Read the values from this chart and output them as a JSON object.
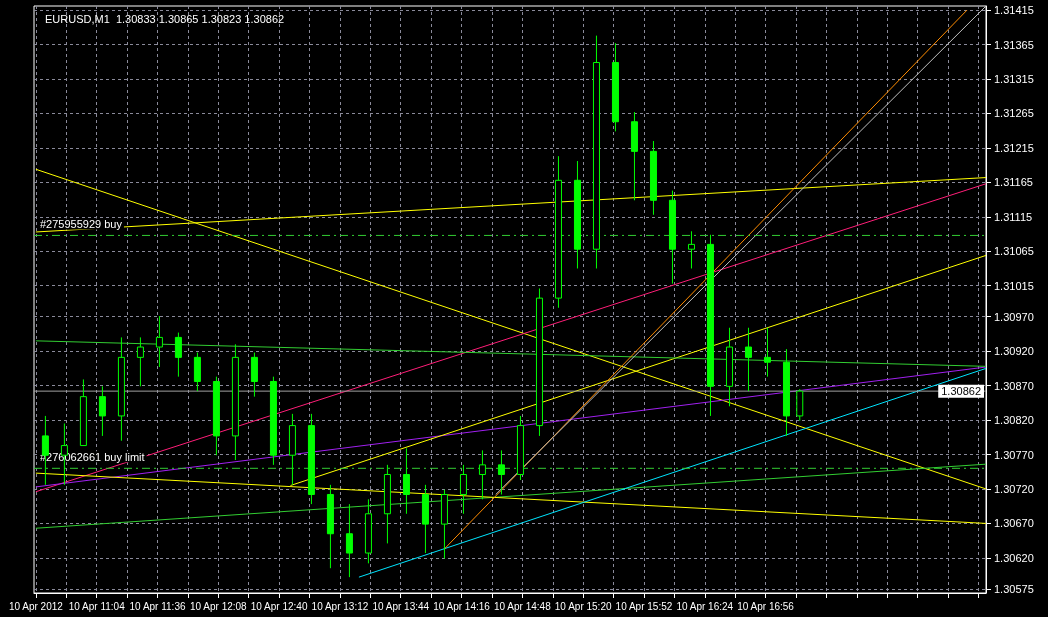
{
  "chart_data": {
    "type": "candlestick",
    "title": "EURUSD,M1  1.30833 1.30865 1.30823 1.30862",
    "color": "#00ff00",
    "x": [
      "2012-04-10T10:37",
      "2012-04-10T10:47",
      "2012-04-10T10:57",
      "2012-04-10T11:07",
      "2012-04-10T11:17",
      "2012-04-10T11:27",
      "2012-04-10T11:37",
      "2012-04-10T11:47",
      "2012-04-10T11:57",
      "2012-04-10T12:07",
      "2012-04-10T12:17",
      "2012-04-10T12:27",
      "2012-04-10T12:37",
      "2012-04-10T12:47",
      "2012-04-10T12:57",
      "2012-04-10T13:07",
      "2012-04-10T13:17",
      "2012-04-10T13:27",
      "2012-04-10T13:37",
      "2012-04-10T13:47",
      "2012-04-10T13:57",
      "2012-04-10T14:07",
      "2012-04-10T14:17",
      "2012-04-10T14:27",
      "2012-04-10T14:37",
      "2012-04-10T14:47",
      "2012-04-10T14:57",
      "2012-04-10T15:07",
      "2012-04-10T15:17",
      "2012-04-10T15:27",
      "2012-04-10T15:37",
      "2012-04-10T15:47",
      "2012-04-10T15:57",
      "2012-04-10T16:07",
      "2012-04-10T16:17",
      "2012-04-10T16:27",
      "2012-04-10T16:37",
      "2012-04-10T16:47",
      "2012-04-10T16:57",
      "2012-04-10T17:07",
      "2012-04-10T17:14"
    ],
    "ohlc": [
      [
        1.30797,
        1.30826,
        1.30726,
        1.30769
      ],
      [
        1.30769,
        1.30815,
        1.30726,
        1.30783
      ],
      [
        1.30783,
        1.30879,
        1.30783,
        1.30854
      ],
      [
        1.30854,
        1.30869,
        1.30797,
        1.30826
      ],
      [
        1.30826,
        1.3094,
        1.3079,
        1.30911
      ],
      [
        1.30911,
        1.3094,
        1.30869,
        1.30926
      ],
      [
        1.30926,
        1.30971,
        1.30897,
        1.3094
      ],
      [
        1.3094,
        1.30947,
        1.30883,
        1.30911
      ],
      [
        1.30911,
        1.30918,
        1.30862,
        1.30876
      ],
      [
        1.30876,
        1.30883,
        1.30769,
        1.30797
      ],
      [
        1.30797,
        1.3093,
        1.30762,
        1.30911
      ],
      [
        1.30911,
        1.30918,
        1.30854,
        1.30876
      ],
      [
        1.30876,
        1.30883,
        1.30755,
        1.30769
      ],
      [
        1.30769,
        1.30829,
        1.30726,
        1.30812
      ],
      [
        1.30812,
        1.30829,
        1.30698,
        1.30712
      ],
      [
        1.30712,
        1.30726,
        1.30605,
        1.30655
      ],
      [
        1.30655,
        1.30698,
        1.30592,
        1.30627
      ],
      [
        1.30627,
        1.30705,
        1.30612,
        1.30684
      ],
      [
        1.30684,
        1.30755,
        1.30641,
        1.30741
      ],
      [
        1.30741,
        1.30779,
        1.30684,
        1.30712
      ],
      [
        1.30712,
        1.30726,
        1.30627,
        1.30669
      ],
      [
        1.30669,
        1.30719,
        1.30619,
        1.30712
      ],
      [
        1.30712,
        1.30755,
        1.30684,
        1.30741
      ],
      [
        1.30741,
        1.30776,
        1.30705,
        1.30755
      ],
      [
        1.30755,
        1.30776,
        1.30712,
        1.30741
      ],
      [
        1.30741,
        1.30826,
        1.30733,
        1.30812
      ],
      [
        1.30812,
        1.31011,
        1.30797,
        1.30997
      ],
      [
        1.30997,
        1.31203,
        1.30983,
        1.31168
      ],
      [
        1.31168,
        1.31196,
        1.3104,
        1.31068
      ],
      [
        1.31068,
        1.31378,
        1.3104,
        1.31339
      ],
      [
        1.31339,
        1.31367,
        1.31239,
        1.31253
      ],
      [
        1.31253,
        1.31267,
        1.31139,
        1.3121
      ],
      [
        1.3121,
        1.31225,
        1.31118,
        1.31139
      ],
      [
        1.31139,
        1.31153,
        1.31018,
        1.31068
      ],
      [
        1.31068,
        1.31094,
        1.3104,
        1.31075
      ],
      [
        1.31075,
        1.31089,
        1.30826,
        1.30869
      ],
      [
        1.30869,
        1.30954,
        1.3084,
        1.30926
      ],
      [
        1.30926,
        1.30954,
        1.30862,
        1.30911
      ],
      [
        1.30911,
        1.30954,
        1.30883,
        1.30904
      ],
      [
        1.30904,
        1.30923,
        1.30797,
        1.30826
      ],
      [
        1.30826,
        1.30865,
        1.30819,
        1.30862
      ]
    ],
    "series": [
      {
        "type": "line",
        "color": "#ffff00",
        "x": [
          "2012-04-10T10:32",
          "2012-04-10T18:52"
        ],
        "values": [
          1.31184,
          1.3072
        ]
      },
      {
        "type": "line",
        "color": "#ffff00",
        "x": [
          "2012-04-10T10:32",
          "2012-04-10T18:52"
        ],
        "values": [
          1.31093,
          1.31172
        ]
      },
      {
        "type": "line",
        "color": "#ff1e78",
        "x": [
          "2012-04-10T10:32",
          "2012-04-10T18:52"
        ],
        "values": [
          1.30716,
          1.31163
        ]
      },
      {
        "type": "line",
        "color": "#a020f0",
        "x": [
          "2012-04-10T10:32",
          "2012-04-10T18:52"
        ],
        "values": [
          1.30723,
          1.30897
        ]
      },
      {
        "type": "line",
        "color": "#ffff00",
        "x": [
          "2012-04-10T12:46",
          "2012-04-10T18:52"
        ],
        "values": [
          1.30725,
          1.31059
        ]
      },
      {
        "type": "line",
        "color": "#32cd32",
        "x": [
          "2012-04-10T10:32",
          "2012-04-10T18:52"
        ],
        "values": [
          1.30935,
          1.30898
        ]
      },
      {
        "type": "line",
        "color": "#32cd32",
        "x": [
          "2012-04-10T10:32",
          "2012-04-10T18:52"
        ],
        "values": [
          1.30663,
          1.30756
        ]
      },
      {
        "type": "line",
        "color": "#ffff00",
        "x": [
          "2012-04-10T10:32",
          "2012-04-10T18:52"
        ],
        "values": [
          1.30743,
          1.3067
        ]
      },
      {
        "type": "line",
        "color": "#00e5ff",
        "x": [
          "2012-04-10T13:22",
          "2012-04-10T18:52"
        ],
        "values": [
          1.30592,
          1.30895
        ]
      },
      {
        "type": "line",
        "color": "#ff8c00",
        "x": [
          "2012-04-10T14:07",
          "2012-04-10T18:42"
        ],
        "values": [
          1.30633,
          1.31415
        ]
      },
      {
        "type": "line",
        "color": "#c0c0c0",
        "x": [
          "2012-04-10T14:34",
          "2012-04-10T18:52"
        ],
        "values": [
          1.30712,
          1.31421
        ]
      }
    ],
    "ref_lines": [
      {
        "axis": "y",
        "value": 1.31088,
        "label": "#275955929 buy",
        "color": "#32cd32",
        "line_style": "dashed"
      },
      {
        "axis": "y",
        "value": 1.3075,
        "label": "#276062661 buy limit",
        "color": "#32cd32",
        "line_style": "dashed"
      },
      {
        "axis": "y",
        "value": 1.30862,
        "label": "1.30862",
        "color": "#a0a0a0",
        "line_style": "solid"
      }
    ],
    "xlim": [
      "2012-04-10T10:31",
      "2012-04-10T18:52"
    ],
    "ylim": [
      1.30569,
      1.31421
    ],
    "xticks": [
      {
        "value": "2012-04-10T10:32",
        "label": "10 Apr 2012"
      },
      {
        "value": "2012-04-10T10:48",
        "label": null
      },
      {
        "value": "2012-04-10T11:04",
        "label": "10 Apr 11:04"
      },
      {
        "value": "2012-04-10T11:20",
        "label": null
      },
      {
        "value": "2012-04-10T11:36",
        "label": "10 Apr 11:36"
      },
      {
        "value": "2012-04-10T11:52",
        "label": null
      },
      {
        "value": "2012-04-10T12:08",
        "label": "10 Apr 12:08"
      },
      {
        "value": "2012-04-10T12:24",
        "label": null
      },
      {
        "value": "2012-04-10T12:40",
        "label": "10 Apr 12:40"
      },
      {
        "value": "2012-04-10T12:56",
        "label": null
      },
      {
        "value": "2012-04-10T13:12",
        "label": "10 Apr 13:12"
      },
      {
        "value": "2012-04-10T13:28",
        "label": null
      },
      {
        "value": "2012-04-10T13:44",
        "label": "10 Apr 13:44"
      },
      {
        "value": "2012-04-10T14:00",
        "label": null
      },
      {
        "value": "2012-04-10T14:16",
        "label": "10 Apr 14:16"
      },
      {
        "value": "2012-04-10T14:32",
        "label": null
      },
      {
        "value": "2012-04-10T14:48",
        "label": "10 Apr 14:48"
      },
      {
        "value": "2012-04-10T15:04",
        "label": null
      },
      {
        "value": "2012-04-10T15:20",
        "label": "10 Apr 15:20"
      },
      {
        "value": "2012-04-10T15:36",
        "label": null
      },
      {
        "value": "2012-04-10T15:52",
        "label": "10 Apr 15:52"
      },
      {
        "value": "2012-04-10T16:08",
        "label": null
      },
      {
        "value": "2012-04-10T16:24",
        "label": "10 Apr 16:24"
      },
      {
        "value": "2012-04-10T16:40",
        "label": null
      },
      {
        "value": "2012-04-10T16:56",
        "label": "10 Apr 16:56"
      },
      {
        "value": "2012-04-10T17:12",
        "label": null
      },
      {
        "value": "2012-04-10T17:28",
        "label": null
      },
      {
        "value": "2012-04-10T17:44",
        "label": null
      },
      {
        "value": "2012-04-10T18:00",
        "label": null
      },
      {
        "value": "2012-04-10T18:16",
        "label": null
      },
      {
        "value": "2012-04-10T18:32",
        "label": null
      },
      {
        "value": "2012-04-10T18:48",
        "label": null
      }
    ],
    "yticks": [
      {
        "value": 1.30575,
        "label": "1.30575"
      },
      {
        "value": 1.3062,
        "label": "1.30620"
      },
      {
        "value": 1.3067,
        "label": "1.30670"
      },
      {
        "value": 1.3072,
        "label": "1.30720"
      },
      {
        "value": 1.3077,
        "label": "1.30770"
      },
      {
        "value": 1.3082,
        "label": "1.30820"
      },
      {
        "value": 1.3087,
        "label": "1.30870"
      },
      {
        "value": 1.3092,
        "label": "1.30920"
      },
      {
        "value": 1.3097,
        "label": "1.30970"
      },
      {
        "value": 1.31015,
        "label": "1.31015"
      },
      {
        "value": 1.31065,
        "label": "1.31065"
      },
      {
        "value": 1.31115,
        "label": "1.31115"
      },
      {
        "value": 1.31165,
        "label": "1.31165"
      },
      {
        "value": 1.31215,
        "label": "1.31215"
      },
      {
        "value": 1.31265,
        "label": "1.31265"
      },
      {
        "value": 1.31315,
        "label": "1.31315"
      },
      {
        "value": 1.31365,
        "label": "1.31365"
      },
      {
        "value": 1.31415,
        "label": "1.31415"
      }
    ],
    "grid": true
  }
}
